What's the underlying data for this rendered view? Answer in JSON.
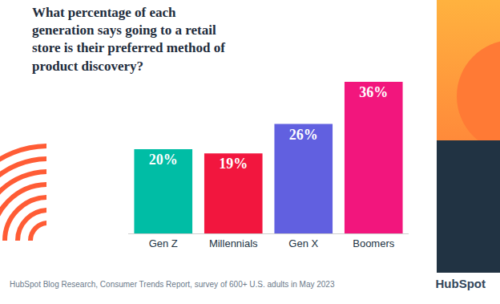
{
  "chart_data": {
    "type": "bar",
    "title": "What percentage of each\ngeneration says going to a retail\nstore is their preferred method of\nproduct discovery?",
    "categories": [
      "Gen Z",
      "Millennials",
      "Gen X",
      "Boomers"
    ],
    "values": [
      20,
      19,
      26,
      36
    ],
    "value_labels": [
      "20%",
      "19%",
      "26%",
      "36%"
    ],
    "colors": [
      "#00bda5",
      "#f2163e",
      "#6160e0",
      "#f2167d"
    ],
    "ylim": [
      0,
      36
    ],
    "grid": false,
    "data_labels": true,
    "tick_labels": "x",
    "source": "HubSpot Blog Research, Consumer Trends Report, survey of 600+ U.S. adults in May 2023",
    "logo": "HubSpot"
  }
}
